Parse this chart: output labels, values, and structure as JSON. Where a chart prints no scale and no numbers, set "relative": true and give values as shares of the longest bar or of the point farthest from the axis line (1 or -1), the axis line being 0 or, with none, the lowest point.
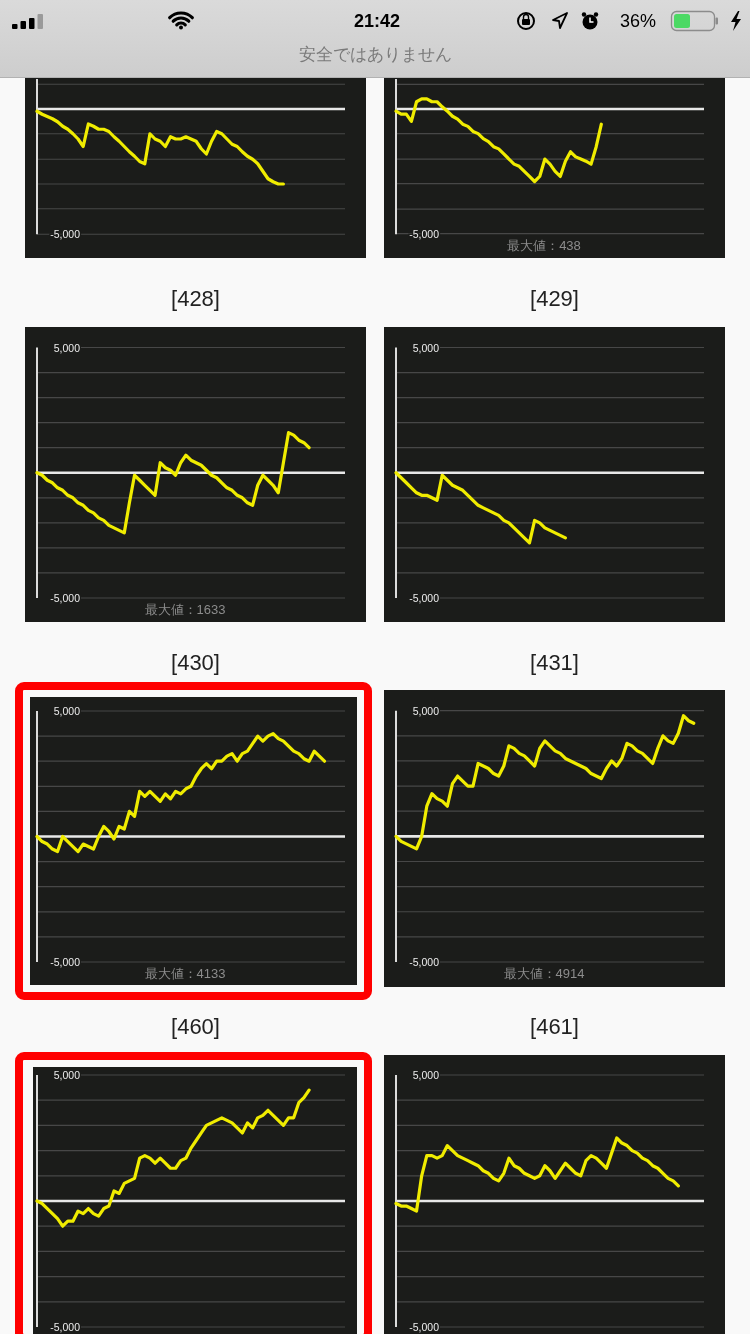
{
  "chart_data": [
    {
      "type": "other",
      "annotations": [
        "21:42",
        "36%",
        "安全ではありません"
      ]
    },
    {
      "type": "line",
      "relative": true,
      "categories": [
        null,
        null,
        null,
        null,
        null,
        null,
        null,
        null,
        null,
        null,
        null,
        null,
        null,
        null,
        null,
        null,
        null,
        null,
        null,
        null,
        null,
        null,
        null,
        null,
        null,
        null,
        null,
        null,
        null,
        null,
        null,
        null,
        null,
        null,
        null,
        null,
        null,
        null,
        null,
        null,
        null,
        null,
        null,
        null,
        null,
        null,
        null,
        null,
        null,
        null,
        null,
        null,
        null,
        null,
        null,
        null,
        null,
        null,
        null,
        null,
        null
      ],
      "series": [
        {
          "color": "#f0ec00",
          "values": [
            -0.03,
            -0.07,
            -0.1,
            -0.13,
            -0.17,
            -0.23,
            -0.27,
            -0.33,
            -0.4,
            -0.5,
            -0.2,
            -0.23,
            -0.27,
            -0.27,
            -0.3,
            -0.37,
            -0.43,
            -0.5,
            -0.57,
            -0.63,
            -0.7,
            -0.73,
            -0.33,
            -0.4,
            -0.43,
            -0.5,
            -0.37,
            -0.4,
            -0.4,
            -0.37,
            -0.4,
            -0.43,
            -0.53,
            -0.6,
            -0.43,
            -0.3,
            -0.33,
            -0.4,
            -0.47,
            -0.5,
            -0.57,
            -0.63,
            -0.67,
            -0.73,
            -0.83,
            -0.93,
            -0.97,
            -1,
            -1,
            null,
            null,
            null,
            null,
            null,
            null,
            null,
            null,
            null,
            null,
            null,
            null
          ]
        }
      ],
      "ref_lines": [
        {
          "axis": "y",
          "value": 0.33,
          "color": "#474747"
        },
        {
          "axis": "y",
          "value": -0.33,
          "color": "#474747"
        },
        {
          "axis": "y",
          "value": -0.67,
          "color": "#474747"
        },
        {
          "axis": "y",
          "value": -1,
          "color": "#474747"
        },
        {
          "axis": "y",
          "value": -1.33,
          "color": "#474747"
        },
        {
          "axis": "y",
          "value": -1.67,
          "color": "#474747"
        }
      ],
      "annotations": [
        "-5,000"
      ]
    },
    {
      "type": "line",
      "relative": true,
      "categories": [
        null,
        null,
        null,
        null,
        null,
        null,
        null,
        null,
        null,
        null,
        null,
        null,
        null,
        null,
        null,
        null,
        null,
        null,
        null,
        null,
        null,
        null,
        null,
        null,
        null,
        null,
        null,
        null,
        null,
        null,
        null,
        null,
        null,
        null,
        null,
        null,
        null,
        null,
        null,
        null,
        null,
        null,
        null,
        null,
        null,
        null,
        null,
        null,
        null,
        null,
        null,
        null,
        null,
        null,
        null,
        null,
        null,
        null,
        null,
        null,
        null
      ],
      "series": [
        {
          "color": "#f0ec00",
          "values": [
            -0.03,
            -0.07,
            -0.07,
            -0.17,
            0.1,
            0.14,
            0.14,
            0.1,
            0.1,
            0.03,
            -0.03,
            -0.1,
            -0.14,
            -0.21,
            -0.24,
            -0.31,
            -0.34,
            -0.41,
            -0.45,
            -0.52,
            -0.55,
            -0.62,
            -0.69,
            -0.76,
            -0.79,
            -0.86,
            -0.93,
            -1,
            -0.93,
            -0.69,
            -0.76,
            -0.86,
            -0.93,
            -0.72,
            -0.59,
            -0.66,
            -0.69,
            -0.72,
            -0.76,
            -0.52,
            -0.21,
            null,
            null,
            null,
            null,
            null,
            null,
            null,
            null,
            null,
            null,
            null,
            null,
            null,
            null,
            null,
            null,
            null,
            null,
            null,
            null
          ]
        }
      ],
      "ref_lines": [
        {
          "axis": "y",
          "value": 0.34,
          "color": "#474747"
        },
        {
          "axis": "y",
          "value": -0.34,
          "color": "#474747"
        },
        {
          "axis": "y",
          "value": -0.69,
          "color": "#474747"
        },
        {
          "axis": "y",
          "value": -1.03,
          "color": "#474747"
        },
        {
          "axis": "y",
          "value": -1.38,
          "color": "#474747"
        },
        {
          "axis": "y",
          "value": -1.72,
          "color": "#474747"
        }
      ],
      "annotations": [
        "-5,000",
        "最大値：438"
      ]
    },
    {
      "type": "line",
      "title": "[428]",
      "categories": [
        null,
        null,
        null,
        null,
        null,
        null,
        null,
        null,
        null,
        null,
        null,
        null,
        null,
        null,
        null,
        null,
        null,
        null,
        null,
        null,
        null,
        null,
        null,
        null,
        null,
        null,
        null,
        null,
        null,
        null,
        null,
        null,
        null,
        null,
        null,
        null,
        null,
        null,
        null,
        null,
        null,
        null,
        null,
        null,
        null,
        null,
        null,
        null,
        null,
        null,
        null,
        null,
        null,
        null,
        null,
        null,
        null,
        null,
        null,
        null,
        null
      ],
      "series": [
        {
          "color": "#f0ec00",
          "values": [
            0,
            -100,
            -300,
            -400,
            -600,
            -700,
            -900,
            -1000,
            -1200,
            -1300,
            -1500,
            -1600,
            -1800,
            -1900,
            -2100,
            -2200,
            -2300,
            -2400,
            -1200,
            -100,
            -300,
            -500,
            -700,
            -900,
            400,
            200,
            100,
            -100,
            400,
            700,
            500,
            400,
            300,
            100,
            -100,
            -200,
            -400,
            -600,
            -700,
            -900,
            -1000,
            -1200,
            -1300,
            -500,
            -100,
            -300,
            -500,
            -800,
            400,
            1600,
            1500,
            1300,
            1200,
            1000,
            null,
            null,
            null,
            null,
            null,
            null,
            null
          ]
        }
      ],
      "ylim": [
        -5000,
        5000
      ],
      "yticks": [
        {
          "value": 5000,
          "label": "5,000"
        },
        {
          "value": 4000,
          "label": null
        },
        {
          "value": 3000,
          "label": null
        },
        {
          "value": 2000,
          "label": null
        },
        {
          "value": 1000,
          "label": null
        },
        {
          "value": -1000,
          "label": null
        },
        {
          "value": -2000,
          "label": null
        },
        {
          "value": -3000,
          "label": null
        },
        {
          "value": -4000,
          "label": null
        },
        {
          "value": -5000,
          "label": "-5,000"
        }
      ],
      "grid": "y",
      "tick_labels": "y",
      "ref_lines": [
        {
          "axis": "y",
          "value": 0,
          "color": "#e8e8e8"
        }
      ],
      "annotations": [
        "最大値：1633"
      ]
    },
    {
      "type": "line",
      "title": "[429]",
      "categories": [
        null,
        null,
        null,
        null,
        null,
        null,
        null,
        null,
        null,
        null,
        null,
        null,
        null,
        null,
        null,
        null,
        null,
        null,
        null,
        null,
        null,
        null,
        null,
        null,
        null,
        null,
        null,
        null,
        null,
        null,
        null,
        null,
        null,
        null,
        null,
        null,
        null,
        null,
        null,
        null,
        null,
        null,
        null,
        null,
        null,
        null,
        null,
        null,
        null,
        null,
        null,
        null,
        null,
        null,
        null,
        null,
        null,
        null,
        null,
        null,
        null
      ],
      "series": [
        {
          "color": "#f0ec00",
          "values": [
            0,
            -200,
            -400,
            -600,
            -800,
            -900,
            -900,
            -1000,
            -1100,
            -100,
            -300,
            -500,
            -600,
            -700,
            -900,
            -1100,
            -1300,
            -1400,
            -1500,
            -1600,
            -1700,
            -1900,
            -2000,
            -2200,
            -2400,
            -2600,
            -2800,
            -1900,
            -2000,
            -2200,
            -2300,
            -2400,
            -2500,
            -2600,
            null,
            null,
            null,
            null,
            null,
            null,
            null,
            null,
            null,
            null,
            null,
            null,
            null,
            null,
            null,
            null,
            null,
            null,
            null,
            null,
            null,
            null,
            null,
            null,
            null,
            null,
            null
          ]
        }
      ],
      "ylim": [
        -5000,
        5000
      ],
      "yticks": [
        {
          "value": 5000,
          "label": "5,000"
        },
        {
          "value": 4000,
          "label": null
        },
        {
          "value": 3000,
          "label": null
        },
        {
          "value": 2000,
          "label": null
        },
        {
          "value": 1000,
          "label": null
        },
        {
          "value": -1000,
          "label": null
        },
        {
          "value": -2000,
          "label": null
        },
        {
          "value": -3000,
          "label": null
        },
        {
          "value": -4000,
          "label": null
        },
        {
          "value": -5000,
          "label": "-5,000"
        }
      ],
      "grid": "y",
      "tick_labels": "y",
      "ref_lines": [
        {
          "axis": "y",
          "value": 0,
          "color": "#e8e8e8"
        }
      ]
    },
    {
      "type": "line",
      "title": "[430]",
      "categories": [
        null,
        null,
        null,
        null,
        null,
        null,
        null,
        null,
        null,
        null,
        null,
        null,
        null,
        null,
        null,
        null,
        null,
        null,
        null,
        null,
        null,
        null,
        null,
        null,
        null,
        null,
        null,
        null,
        null,
        null,
        null,
        null,
        null,
        null,
        null,
        null,
        null,
        null,
        null,
        null,
        null,
        null,
        null,
        null,
        null,
        null,
        null,
        null,
        null,
        null,
        null,
        null,
        null,
        null,
        null,
        null,
        null,
        null,
        null,
        null,
        null
      ],
      "series": [
        {
          "color": "#f0ec00",
          "values": [
            0,
            -200,
            -300,
            -500,
            -600,
            0,
            -200,
            -400,
            -600,
            -300,
            -400,
            -500,
            0,
            400,
            200,
            -100,
            400,
            300,
            1000,
            800,
            1800,
            1600,
            1800,
            1600,
            1400,
            1700,
            1500,
            1800,
            1700,
            1900,
            2000,
            2400,
            2700,
            2900,
            2700,
            3000,
            3000,
            3200,
            3300,
            3000,
            3300,
            3400,
            3700,
            4000,
            3800,
            4000,
            4100,
            3900,
            3800,
            3600,
            3400,
            3300,
            3100,
            3000,
            3400,
            3200,
            3000,
            null,
            null,
            null,
            null
          ]
        }
      ],
      "ylim": [
        -5000,
        5000
      ],
      "yticks": [
        {
          "value": 5000,
          "label": "5,000"
        },
        {
          "value": 4000,
          "label": null
        },
        {
          "value": 3000,
          "label": null
        },
        {
          "value": 2000,
          "label": null
        },
        {
          "value": 1000,
          "label": null
        },
        {
          "value": -1000,
          "label": null
        },
        {
          "value": -2000,
          "label": null
        },
        {
          "value": -3000,
          "label": null
        },
        {
          "value": -4000,
          "label": null
        },
        {
          "value": -5000,
          "label": "-5,000"
        }
      ],
      "grid": "y",
      "tick_labels": "y",
      "ref_lines": [
        {
          "axis": "y",
          "value": 0,
          "color": "#e8e8e8"
        }
      ],
      "annotations": [
        "最大値：4133"
      ]
    },
    {
      "type": "line",
      "title": "[431]",
      "categories": [
        null,
        null,
        null,
        null,
        null,
        null,
        null,
        null,
        null,
        null,
        null,
        null,
        null,
        null,
        null,
        null,
        null,
        null,
        null,
        null,
        null,
        null,
        null,
        null,
        null,
        null,
        null,
        null,
        null,
        null,
        null,
        null,
        null,
        null,
        null,
        null,
        null,
        null,
        null,
        null,
        null,
        null,
        null,
        null,
        null,
        null,
        null,
        null,
        null,
        null,
        null,
        null,
        null,
        null,
        null,
        null,
        null,
        null,
        null,
        null,
        null
      ],
      "series": [
        {
          "color": "#f0ec00",
          "values": [
            0,
            -200,
            -300,
            -400,
            -500,
            0,
            1200,
            1700,
            1500,
            1400,
            1200,
            2100,
            2400,
            2200,
            2000,
            2000,
            2900,
            2800,
            2700,
            2500,
            2400,
            2800,
            3600,
            3500,
            3300,
            3200,
            3000,
            2800,
            3500,
            3800,
            3600,
            3400,
            3300,
            3100,
            3000,
            2900,
            2800,
            2700,
            2500,
            2400,
            2300,
            2700,
            3000,
            2800,
            3100,
            3700,
            3600,
            3400,
            3300,
            3100,
            2900,
            3500,
            4000,
            3800,
            3700,
            4100,
            4800,
            4600,
            4500,
            null,
            null
          ]
        }
      ],
      "ylim": [
        -5000,
        5000
      ],
      "yticks": [
        {
          "value": 5000,
          "label": "5,000"
        },
        {
          "value": 4000,
          "label": null
        },
        {
          "value": 3000,
          "label": null
        },
        {
          "value": 2000,
          "label": null
        },
        {
          "value": 1000,
          "label": null
        },
        {
          "value": -1000,
          "label": null
        },
        {
          "value": -2000,
          "label": null
        },
        {
          "value": -3000,
          "label": null
        },
        {
          "value": -4000,
          "label": null
        },
        {
          "value": -5000,
          "label": "-5,000"
        }
      ],
      "grid": "y",
      "tick_labels": "y",
      "ref_lines": [
        {
          "axis": "y",
          "value": 0,
          "color": "#e8e8e8"
        }
      ],
      "annotations": [
        "最大値：4914"
      ]
    },
    {
      "type": "line",
      "title": "[460]",
      "categories": [
        null,
        null,
        null,
        null,
        null,
        null,
        null,
        null,
        null,
        null,
        null,
        null,
        null,
        null,
        null,
        null,
        null,
        null,
        null,
        null,
        null,
        null,
        null,
        null,
        null,
        null,
        null,
        null,
        null,
        null,
        null,
        null,
        null,
        null,
        null,
        null,
        null,
        null,
        null,
        null,
        null,
        null,
        null,
        null,
        null,
        null,
        null,
        null,
        null,
        null,
        null,
        null,
        null,
        null,
        null,
        null,
        null,
        null,
        null,
        null,
        null
      ],
      "series": [
        {
          "color": "#f0ec00",
          "values": [
            0,
            -100,
            -300,
            -500,
            -700,
            -1000,
            -800,
            -800,
            -400,
            -500,
            -300,
            -500,
            -600,
            -300,
            -200,
            400,
            300,
            700,
            800,
            900,
            1700,
            1800,
            1700,
            1500,
            1700,
            1500,
            1300,
            1300,
            1600,
            1700,
            2100,
            2400,
            2700,
            3000,
            3100,
            3200,
            3300,
            3200,
            3100,
            2900,
            2700,
            3100,
            2900,
            3300,
            3400,
            3600,
            3400,
            3200,
            3000,
            3300,
            3300,
            3900,
            4100,
            4400,
            null,
            null,
            null,
            null,
            null,
            null,
            null
          ]
        }
      ],
      "ylim": [
        -5000,
        5000
      ],
      "yticks": [
        {
          "value": 5000,
          "label": "5,000"
        },
        {
          "value": 4000,
          "label": null
        },
        {
          "value": 3000,
          "label": null
        },
        {
          "value": 2000,
          "label": null
        },
        {
          "value": 1000,
          "label": null
        },
        {
          "value": -1000,
          "label": null
        },
        {
          "value": -2000,
          "label": null
        },
        {
          "value": -3000,
          "label": null
        },
        {
          "value": -4000,
          "label": null
        },
        {
          "value": -5000,
          "label": "-5,000"
        }
      ],
      "grid": "y",
      "tick_labels": "y",
      "ref_lines": [
        {
          "axis": "y",
          "value": 0,
          "color": "#e8e8e8"
        }
      ]
    },
    {
      "type": "line",
      "title": "[461]",
      "categories": [
        null,
        null,
        null,
        null,
        null,
        null,
        null,
        null,
        null,
        null,
        null,
        null,
        null,
        null,
        null,
        null,
        null,
        null,
        null,
        null,
        null,
        null,
        null,
        null,
        null,
        null,
        null,
        null,
        null,
        null,
        null,
        null,
        null,
        null,
        null,
        null,
        null,
        null,
        null,
        null,
        null,
        null,
        null,
        null,
        null,
        null,
        null,
        null,
        null,
        null,
        null,
        null,
        null,
        null,
        null,
        null,
        null,
        null,
        null,
        null,
        null
      ],
      "series": [
        {
          "color": "#f0ec00",
          "values": [
            -100,
            -200,
            -200,
            -300,
            -400,
            1000,
            1800,
            1800,
            1700,
            1800,
            2200,
            2000,
            1800,
            1700,
            1600,
            1500,
            1400,
            1200,
            1100,
            900,
            800,
            1100,
            1700,
            1400,
            1300,
            1100,
            1000,
            900,
            1000,
            1400,
            1200,
            900,
            1200,
            1500,
            1300,
            1100,
            1000,
            1600,
            1800,
            1700,
            1500,
            1300,
            1900,
            2500,
            2300,
            2200,
            2000,
            1900,
            1700,
            1600,
            1400,
            1300,
            1100,
            900,
            800,
            600,
            null,
            null,
            null,
            null,
            null
          ]
        }
      ],
      "ylim": [
        -5000,
        5000
      ],
      "yticks": [
        {
          "value": 5000,
          "label": "5,000"
        },
        {
          "value": 4000,
          "label": null
        },
        {
          "value": 3000,
          "label": null
        },
        {
          "value": 2000,
          "label": null
        },
        {
          "value": 1000,
          "label": null
        },
        {
          "value": -1000,
          "label": null
        },
        {
          "value": -2000,
          "label": null
        },
        {
          "value": -3000,
          "label": null
        },
        {
          "value": -4000,
          "label": null
        },
        {
          "value": -5000,
          "label": "-5,000"
        }
      ],
      "grid": "y",
      "tick_labels": "y",
      "ref_lines": [
        {
          "axis": "y",
          "value": 0,
          "color": "#e8e8e8"
        }
      ]
    }
  ]
}
